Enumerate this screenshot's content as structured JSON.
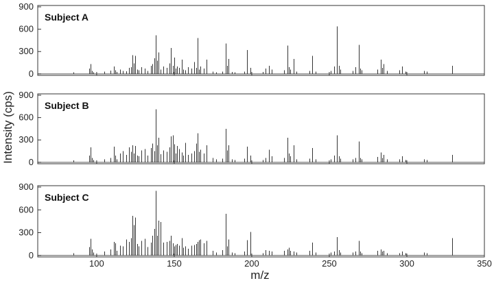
{
  "chart_data": [
    {
      "type": "bar",
      "title": "Subject A",
      "xlabel": "m/z",
      "ylabel": "Intensity (cps)",
      "xlim": [
        62,
        350
      ],
      "ylim": [
        -20,
        900
      ],
      "yticks": [
        0,
        300,
        600,
        900
      ],
      "x": [
        85,
        95,
        96,
        97,
        98,
        105,
        109,
        111,
        112,
        113,
        115,
        117,
        119,
        121,
        122,
        123,
        124,
        125,
        126,
        127,
        129,
        131,
        133,
        135,
        136,
        137,
        138,
        139,
        140,
        141,
        143,
        145,
        147,
        148,
        149,
        150,
        151,
        152,
        153,
        155,
        156,
        157,
        159,
        161,
        163,
        164,
        165,
        166,
        167,
        169,
        171,
        175,
        177,
        181,
        183,
        184,
        185,
        187,
        189,
        195,
        197,
        199,
        207,
        209,
        211,
        213,
        221,
        223,
        224,
        225,
        227,
        229,
        237,
        239,
        241,
        251,
        253,
        255,
        256,
        257,
        265,
        267,
        269,
        270,
        271,
        281,
        283,
        284,
        285,
        287,
        295,
        297,
        299,
        311,
        313,
        329
      ],
      "values": [
        20,
        70,
        130,
        40,
        20,
        30,
        45,
        100,
        50,
        25,
        60,
        40,
        35,
        80,
        90,
        250,
        140,
        240,
        60,
        50,
        90,
        70,
        40,
        110,
        130,
        210,
        520,
        180,
        290,
        60,
        100,
        80,
        140,
        350,
        110,
        220,
        70,
        100,
        80,
        190,
        60,
        50,
        90,
        70,
        160,
        80,
        480,
        60,
        100,
        70,
        190,
        30,
        20,
        30,
        410,
        110,
        200,
        25,
        20,
        30,
        320,
        80,
        25,
        70,
        110,
        60,
        50,
        380,
        90,
        60,
        200,
        30,
        40,
        240,
        30,
        40,
        100,
        640,
        110,
        60,
        40,
        90,
        390,
        70,
        50,
        60,
        190,
        80,
        130,
        40,
        50,
        100,
        30,
        40,
        30,
        110
      ]
    },
    {
      "type": "bar",
      "title": "Subject B",
      "xlabel": "m/z",
      "ylabel": "Intensity (cps)",
      "xlim": [
        62,
        350
      ],
      "ylim": [
        -20,
        900
      ],
      "yticks": [
        0,
        300,
        600,
        900
      ],
      "x": [
        85,
        95,
        96,
        97,
        98,
        105,
        109,
        111,
        112,
        113,
        115,
        117,
        119,
        121,
        122,
        123,
        124,
        125,
        126,
        127,
        129,
        131,
        133,
        135,
        136,
        137,
        138,
        139,
        140,
        141,
        143,
        145,
        147,
        148,
        149,
        150,
        151,
        152,
        153,
        155,
        156,
        157,
        159,
        161,
        163,
        164,
        165,
        166,
        167,
        169,
        171,
        175,
        177,
        181,
        183,
        184,
        185,
        187,
        189,
        195,
        197,
        199,
        207,
        209,
        211,
        213,
        221,
        223,
        224,
        225,
        227,
        229,
        237,
        239,
        241,
        251,
        253,
        255,
        256,
        257,
        265,
        267,
        269,
        270,
        271,
        281,
        283,
        284,
        285,
        287,
        295,
        297,
        299,
        311,
        313,
        329
      ],
      "values": [
        25,
        90,
        200,
        60,
        30,
        40,
        60,
        210,
        90,
        40,
        120,
        150,
        100,
        200,
        140,
        230,
        120,
        220,
        90,
        80,
        160,
        180,
        90,
        190,
        250,
        150,
        710,
        230,
        330,
        110,
        160,
        140,
        200,
        350,
        360,
        240,
        120,
        220,
        180,
        130,
        90,
        260,
        100,
        120,
        150,
        250,
        390,
        140,
        170,
        120,
        230,
        60,
        40,
        50,
        450,
        160,
        230,
        40,
        30,
        50,
        210,
        90,
        30,
        60,
        170,
        80,
        60,
        330,
        120,
        80,
        230,
        40,
        50,
        190,
        40,
        40,
        90,
        360,
        80,
        50,
        40,
        60,
        280,
        60,
        40,
        70,
        130,
        60,
        100,
        40,
        40,
        80,
        30,
        40,
        30,
        100
      ]
    },
    {
      "type": "bar",
      "title": "Subject C",
      "xlabel": "m/z",
      "ylabel": "Intensity (cps)",
      "xlim": [
        62,
        350
      ],
      "ylim": [
        -20,
        900
      ],
      "yticks": [
        0,
        300,
        600,
        900
      ],
      "x": [
        85,
        95,
        96,
        97,
        98,
        105,
        109,
        111,
        112,
        113,
        115,
        117,
        119,
        121,
        122,
        123,
        124,
        125,
        126,
        127,
        129,
        131,
        133,
        135,
        136,
        137,
        138,
        139,
        140,
        141,
        143,
        145,
        147,
        148,
        149,
        150,
        151,
        152,
        153,
        155,
        156,
        157,
        159,
        161,
        163,
        164,
        165,
        166,
        167,
        169,
        171,
        175,
        177,
        181,
        183,
        184,
        185,
        187,
        189,
        195,
        197,
        199,
        207,
        209,
        211,
        213,
        221,
        223,
        224,
        225,
        227,
        229,
        237,
        239,
        241,
        251,
        253,
        255,
        256,
        257,
        265,
        267,
        269,
        270,
        271,
        281,
        283,
        284,
        285,
        287,
        295,
        297,
        299,
        311,
        313,
        329
      ],
      "values": [
        30,
        110,
        220,
        80,
        40,
        50,
        80,
        180,
        160,
        60,
        130,
        120,
        210,
        180,
        230,
        520,
        400,
        500,
        150,
        120,
        190,
        220,
        110,
        170,
        260,
        350,
        850,
        260,
        460,
        440,
        170,
        180,
        190,
        260,
        160,
        120,
        140,
        150,
        130,
        230,
        100,
        120,
        90,
        130,
        140,
        150,
        180,
        200,
        210,
        160,
        190,
        60,
        40,
        70,
        550,
        120,
        210,
        40,
        30,
        50,
        200,
        310,
        30,
        70,
        60,
        50,
        60,
        80,
        100,
        60,
        50,
        40,
        60,
        170,
        40,
        40,
        50,
        240,
        70,
        40,
        40,
        50,
        190,
        50,
        30,
        60,
        80,
        50,
        60,
        30,
        30,
        50,
        30,
        40,
        30,
        230
      ]
    }
  ],
  "figure": {
    "ylabel": "Intensity (cps)",
    "xlabel": "m/z",
    "xticks": [
      100,
      150,
      200,
      250,
      300,
      350
    ]
  }
}
